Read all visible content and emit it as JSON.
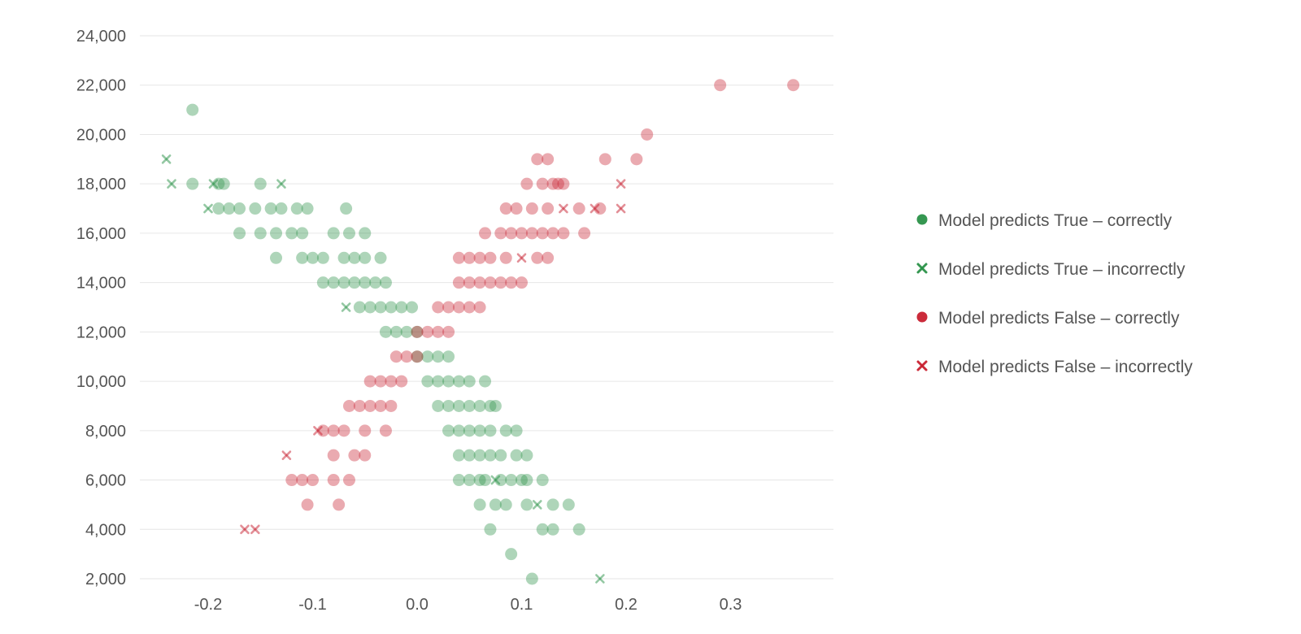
{
  "chart_data": {
    "type": "scatter",
    "title": "",
    "xlabel": "",
    "ylabel": "",
    "xlim": [
      -0.26,
      0.4
    ],
    "ylim": [
      1500,
      24500
    ],
    "x_ticks": [
      -0.2,
      -0.1,
      0.0,
      0.1,
      0.2,
      0.3
    ],
    "x_tick_labels": [
      "-0.2",
      "-0.1",
      "0.0",
      "0.1",
      "0.2",
      "0.3"
    ],
    "y_ticks": [
      2000,
      4000,
      6000,
      8000,
      10000,
      12000,
      14000,
      16000,
      18000,
      20000,
      22000,
      24000
    ],
    "y_tick_labels": [
      "2,000",
      "4,000",
      "6,000",
      "8,000",
      "10,000",
      "12,000",
      "14,000",
      "16,000",
      "18,000",
      "20,000",
      "22,000",
      "24,000"
    ],
    "grid": "horizontal",
    "legend_position": "right",
    "series": [
      {
        "name": "Model predicts True – correctly",
        "marker": "circle",
        "color": "#2a9148",
        "points": [
          [
            0.11,
            2000
          ],
          [
            0.07,
            4000
          ],
          [
            0.12,
            4000
          ],
          [
            0.13,
            4000
          ],
          [
            0.155,
            4000
          ],
          [
            0.09,
            3000
          ],
          [
            0.06,
            5000
          ],
          [
            0.075,
            5000
          ],
          [
            0.085,
            5000
          ],
          [
            0.105,
            5000
          ],
          [
            0.13,
            5000
          ],
          [
            0.145,
            5000
          ],
          [
            0.04,
            6000
          ],
          [
            0.05,
            6000
          ],
          [
            0.06,
            6000
          ],
          [
            0.065,
            6000
          ],
          [
            0.08,
            6000
          ],
          [
            0.09,
            6000
          ],
          [
            0.1,
            6000
          ],
          [
            0.105,
            6000
          ],
          [
            0.12,
            6000
          ],
          [
            0.04,
            7000
          ],
          [
            0.05,
            7000
          ],
          [
            0.06,
            7000
          ],
          [
            0.07,
            7000
          ],
          [
            0.08,
            7000
          ],
          [
            0.095,
            7000
          ],
          [
            0.105,
            7000
          ],
          [
            0.03,
            8000
          ],
          [
            0.04,
            8000
          ],
          [
            0.05,
            8000
          ],
          [
            0.06,
            8000
          ],
          [
            0.07,
            8000
          ],
          [
            0.085,
            8000
          ],
          [
            0.095,
            8000
          ],
          [
            0.02,
            9000
          ],
          [
            0.03,
            9000
          ],
          [
            0.04,
            9000
          ],
          [
            0.05,
            9000
          ],
          [
            0.06,
            9000
          ],
          [
            0.07,
            9000
          ],
          [
            0.075,
            9000
          ],
          [
            0.01,
            10000
          ],
          [
            0.02,
            10000
          ],
          [
            0.03,
            10000
          ],
          [
            0.04,
            10000
          ],
          [
            0.05,
            10000
          ],
          [
            0.065,
            10000
          ],
          [
            0.0,
            11000
          ],
          [
            0.01,
            11000
          ],
          [
            0.02,
            11000
          ],
          [
            0.03,
            11000
          ],
          [
            -0.03,
            12000
          ],
          [
            -0.02,
            12000
          ],
          [
            -0.01,
            12000
          ],
          [
            0.0,
            12000
          ],
          [
            -0.055,
            13000
          ],
          [
            -0.045,
            13000
          ],
          [
            -0.035,
            13000
          ],
          [
            -0.025,
            13000
          ],
          [
            -0.015,
            13000
          ],
          [
            -0.005,
            13000
          ],
          [
            -0.09,
            14000
          ],
          [
            -0.08,
            14000
          ],
          [
            -0.07,
            14000
          ],
          [
            -0.06,
            14000
          ],
          [
            -0.05,
            14000
          ],
          [
            -0.04,
            14000
          ],
          [
            -0.03,
            14000
          ],
          [
            -0.135,
            15000
          ],
          [
            -0.11,
            15000
          ],
          [
            -0.1,
            15000
          ],
          [
            -0.09,
            15000
          ],
          [
            -0.07,
            15000
          ],
          [
            -0.06,
            15000
          ],
          [
            -0.05,
            15000
          ],
          [
            -0.035,
            15000
          ],
          [
            -0.17,
            16000
          ],
          [
            -0.15,
            16000
          ],
          [
            -0.135,
            16000
          ],
          [
            -0.12,
            16000
          ],
          [
            -0.11,
            16000
          ],
          [
            -0.08,
            16000
          ],
          [
            -0.065,
            16000
          ],
          [
            -0.05,
            16000
          ],
          [
            -0.19,
            17000
          ],
          [
            -0.18,
            17000
          ],
          [
            -0.17,
            17000
          ],
          [
            -0.155,
            17000
          ],
          [
            -0.14,
            17000
          ],
          [
            -0.13,
            17000
          ],
          [
            -0.115,
            17000
          ],
          [
            -0.105,
            17000
          ],
          [
            -0.068,
            17000
          ],
          [
            -0.215,
            18000
          ],
          [
            -0.19,
            18000
          ],
          [
            -0.185,
            18000
          ],
          [
            -0.15,
            18000
          ],
          [
            -0.215,
            21000
          ]
        ]
      },
      {
        "name": "Model predicts True – incorrectly",
        "marker": "x",
        "color": "#2a9148",
        "points": [
          [
            0.175,
            2000
          ],
          [
            0.115,
            5000
          ],
          [
            0.075,
            6000
          ],
          [
            -0.068,
            13000
          ],
          [
            -0.2,
            17000
          ],
          [
            -0.235,
            18000
          ],
          [
            -0.195,
            18000
          ],
          [
            -0.13,
            18000
          ],
          [
            -0.24,
            19000
          ]
        ]
      },
      {
        "name": "Model predicts False – correctly",
        "marker": "circle",
        "color": "#c8202f",
        "points": [
          [
            -0.105,
            5000
          ],
          [
            -0.075,
            5000
          ],
          [
            -0.12,
            6000
          ],
          [
            -0.11,
            6000
          ],
          [
            -0.1,
            6000
          ],
          [
            -0.08,
            6000
          ],
          [
            -0.065,
            6000
          ],
          [
            -0.08,
            7000
          ],
          [
            -0.06,
            7000
          ],
          [
            -0.05,
            7000
          ],
          [
            -0.09,
            8000
          ],
          [
            -0.08,
            8000
          ],
          [
            -0.07,
            8000
          ],
          [
            -0.05,
            8000
          ],
          [
            -0.03,
            8000
          ],
          [
            -0.065,
            9000
          ],
          [
            -0.055,
            9000
          ],
          [
            -0.045,
            9000
          ],
          [
            -0.035,
            9000
          ],
          [
            -0.025,
            9000
          ],
          [
            -0.045,
            10000
          ],
          [
            -0.035,
            10000
          ],
          [
            -0.025,
            10000
          ],
          [
            -0.015,
            10000
          ],
          [
            -0.02,
            11000
          ],
          [
            -0.01,
            11000
          ],
          [
            0.0,
            11000
          ],
          [
            0.0,
            12000
          ],
          [
            0.01,
            12000
          ],
          [
            0.02,
            12000
          ],
          [
            0.03,
            12000
          ],
          [
            0.02,
            13000
          ],
          [
            0.03,
            13000
          ],
          [
            0.04,
            13000
          ],
          [
            0.05,
            13000
          ],
          [
            0.06,
            13000
          ],
          [
            0.04,
            14000
          ],
          [
            0.05,
            14000
          ],
          [
            0.06,
            14000
          ],
          [
            0.07,
            14000
          ],
          [
            0.08,
            14000
          ],
          [
            0.09,
            14000
          ],
          [
            0.1,
            14000
          ],
          [
            0.04,
            15000
          ],
          [
            0.05,
            15000
          ],
          [
            0.06,
            15000
          ],
          [
            0.07,
            15000
          ],
          [
            0.085,
            15000
          ],
          [
            0.115,
            15000
          ],
          [
            0.125,
            15000
          ],
          [
            0.065,
            16000
          ],
          [
            0.08,
            16000
          ],
          [
            0.09,
            16000
          ],
          [
            0.1,
            16000
          ],
          [
            0.11,
            16000
          ],
          [
            0.12,
            16000
          ],
          [
            0.13,
            16000
          ],
          [
            0.14,
            16000
          ],
          [
            0.16,
            16000
          ],
          [
            0.085,
            17000
          ],
          [
            0.095,
            17000
          ],
          [
            0.11,
            17000
          ],
          [
            0.125,
            17000
          ],
          [
            0.155,
            17000
          ],
          [
            0.175,
            17000
          ],
          [
            0.105,
            18000
          ],
          [
            0.12,
            18000
          ],
          [
            0.13,
            18000
          ],
          [
            0.135,
            18000
          ],
          [
            0.14,
            18000
          ],
          [
            0.115,
            19000
          ],
          [
            0.125,
            19000
          ],
          [
            0.18,
            19000
          ],
          [
            0.21,
            19000
          ],
          [
            0.22,
            20000
          ],
          [
            0.29,
            22000
          ],
          [
            0.36,
            22000
          ]
        ]
      },
      {
        "name": "Model predicts False – incorrectly",
        "marker": "x",
        "color": "#c8202f",
        "points": [
          [
            -0.165,
            4000
          ],
          [
            -0.155,
            4000
          ],
          [
            -0.125,
            7000
          ],
          [
            -0.095,
            8000
          ],
          [
            0.1,
            15000
          ],
          [
            0.14,
            17000
          ],
          [
            0.17,
            17000
          ],
          [
            0.195,
            17000
          ],
          [
            0.195,
            18000
          ]
        ]
      }
    ]
  }
}
